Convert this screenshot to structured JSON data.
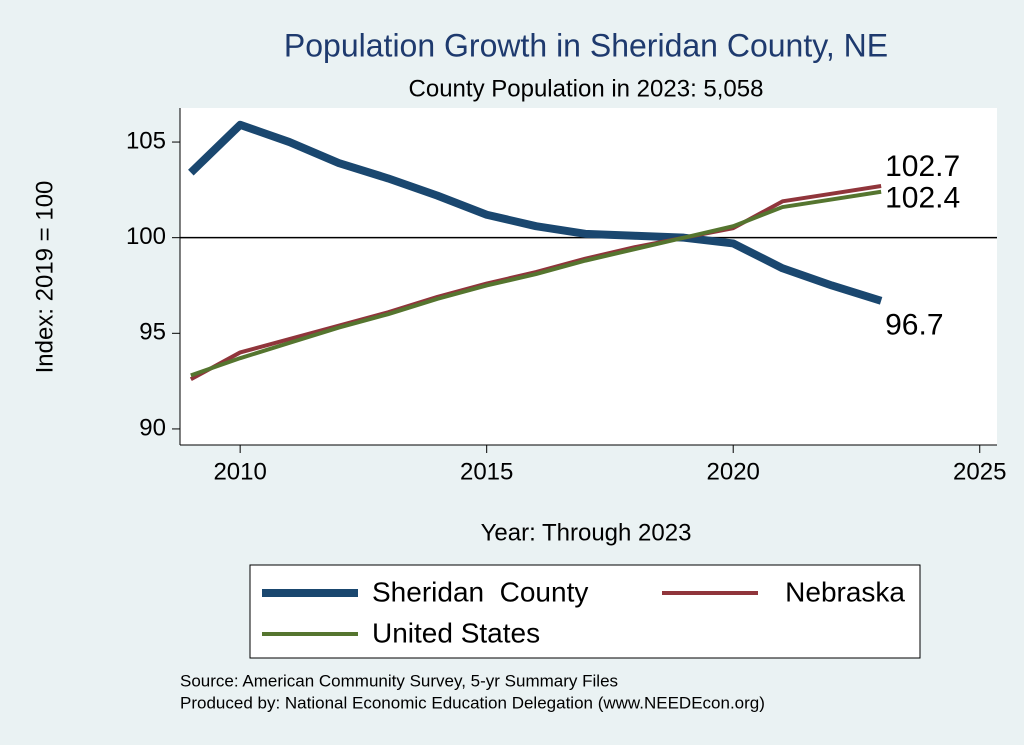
{
  "chart_data": {
    "type": "line",
    "title": "Population Growth in Sheridan County, NE",
    "subtitle": "County Population in 2023: 5,058",
    "x_label": "Year: Through 2023",
    "y_label": "Index: 2019 = 100",
    "x": [
      2009,
      2010,
      2011,
      2012,
      2013,
      2014,
      2015,
      2016,
      2017,
      2018,
      2019,
      2020,
      2021,
      2022,
      2023
    ],
    "series": [
      {
        "name": "Sheridan  County",
        "color": "#1a476f",
        "width": 8,
        "values": [
          103.4,
          105.9,
          105.0,
          103.9,
          103.1,
          102.2,
          101.2,
          100.6,
          100.2,
          100.1,
          100,
          99.7,
          98.4,
          97.5,
          96.7
        ]
      },
      {
        "name": "Nebraska",
        "color": "#90353b",
        "width": 4,
        "values": [
          92.6,
          94.0,
          94.7,
          95.4,
          96.1,
          96.9,
          97.6,
          98.2,
          98.9,
          99.5,
          100,
          100.5,
          101.9,
          102.3,
          102.7
        ]
      },
      {
        "name": "United States",
        "color": "#55752f",
        "width": 4,
        "values": [
          92.8,
          93.7,
          94.5,
          95.3,
          96.0,
          96.8,
          97.5,
          98.1,
          98.8,
          99.4,
          100,
          100.6,
          101.6,
          102.0,
          102.4
        ]
      }
    ],
    "xlim": [
      2008.78,
      2025.35
    ],
    "xticks": [
      2010,
      2015,
      2020,
      2025
    ],
    "ylim": [
      89.16,
      106.78
    ],
    "yticks": [
      90,
      95,
      100,
      105
    ],
    "yline": 100,
    "notes": [
      "Source: American Community Survey, 5-yr Summary Files",
      "Produced by: National Economic Education Delegation (www.NEEDEcon.org)"
    ]
  }
}
